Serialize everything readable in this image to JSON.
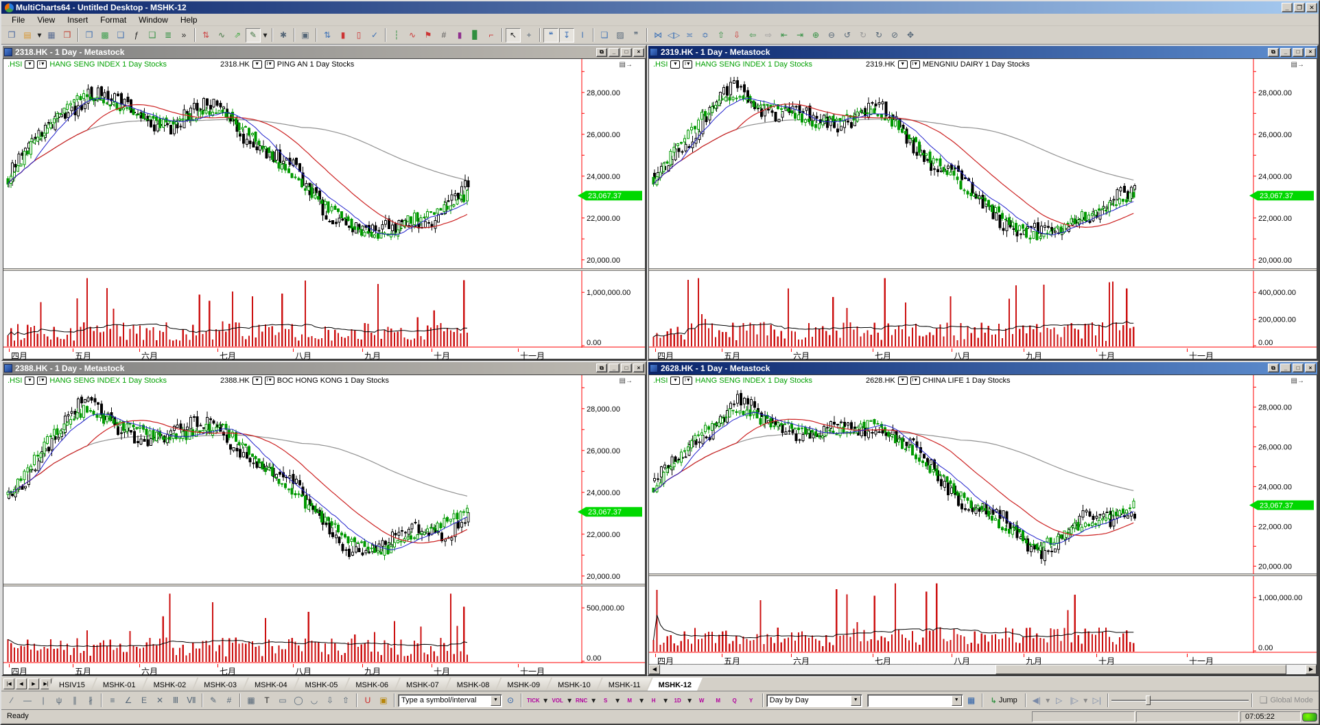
{
  "window": {
    "title": "MultiCharts64 - Untitled Desktop - MSHK-12"
  },
  "menu": [
    "File",
    "View",
    "Insert",
    "Format",
    "Window",
    "Help"
  ],
  "window_buttons": {
    "minimize": "_",
    "restore": "❐",
    "close": "✕"
  },
  "toolbar_main": [
    {
      "n": "new-window-icon",
      "g": "❐",
      "c": "#44639c"
    },
    {
      "n": "open-desktop-icon",
      "g": "▤",
      "c": "#d9952c"
    },
    {
      "n": "open-dropdown-icon",
      "g": "▾",
      "c": "#222",
      "narrow": true
    },
    {
      "n": "save-desktop-icon",
      "g": "▦",
      "c": "#5a6d91"
    },
    {
      "n": "close-window-icon",
      "g": "❒",
      "c": "#c0392b"
    },
    {
      "sep": true
    },
    {
      "n": "insert-window-icon",
      "g": "❐",
      "c": "#3f6fb0"
    },
    {
      "n": "format-window-icon",
      "g": "▩",
      "c": "#3f9f4f"
    },
    {
      "n": "insert-symbol-icon",
      "g": "❑",
      "c": "#3f6fb0"
    },
    {
      "n": "insert-function-icon",
      "g": "ƒ",
      "c": "#222"
    },
    {
      "n": "insert-study-icon",
      "g": "❑",
      "c": "#2f8f3f"
    },
    {
      "n": "study-list-icon",
      "g": "≣",
      "c": "#2f8f3f"
    },
    {
      "n": "toolbar-overflow-icon",
      "g": "»",
      "c": "#222"
    },
    {
      "sep": true
    },
    {
      "n": "insert-instrument-icon",
      "g": "⇅",
      "c": "#cc4444"
    },
    {
      "n": "insert-curve-icon",
      "g": "∿",
      "c": "#447744"
    },
    {
      "n": "insert-arrows-icon",
      "g": "⇗",
      "c": "#44aa44"
    },
    {
      "n": "drawing-mode-icon",
      "g": "✎",
      "c": "#447744",
      "pressed": true
    },
    {
      "n": "drawing-dropdown-icon",
      "g": "▾",
      "c": "#222",
      "narrow": true
    },
    {
      "sep": true
    },
    {
      "n": "study-settings-icon",
      "g": "✱",
      "c": "#556677"
    },
    {
      "sep": true
    },
    {
      "n": "window-properties-icon",
      "g": "▣",
      "c": "#556677"
    },
    {
      "sep": true
    },
    {
      "n": "format-bars-icon",
      "g": "⇅",
      "c": "#3a6fb5"
    },
    {
      "n": "up-candle-icon",
      "g": "▮",
      "c": "#cc3333"
    },
    {
      "n": "hollow-candle-icon",
      "g": "▯",
      "c": "#cc3333"
    },
    {
      "n": "apply-check-icon",
      "g": "✓",
      "c": "#3a6fb5"
    },
    {
      "sep": true
    },
    {
      "n": "line-chart-icon",
      "g": "┆",
      "c": "#2f8f3f"
    },
    {
      "n": "zigzag-chart-icon",
      "g": "∿",
      "c": "#cc3333"
    },
    {
      "n": "flag-chart-icon",
      "g": "⚑",
      "c": "#cc3333"
    },
    {
      "n": "point-figure-icon",
      "g": "#",
      "c": "#555555"
    },
    {
      "n": "candle-volume-icon",
      "g": "▮",
      "c": "#8f2f8f"
    },
    {
      "n": "equivolume-icon",
      "g": "▊",
      "c": "#2f8f3f"
    },
    {
      "n": "kagi-icon",
      "g": "⌐",
      "c": "#cc3333"
    },
    {
      "sep": true
    },
    {
      "n": "pointer-icon",
      "g": "↖",
      "c": "#222",
      "pressed": true
    },
    {
      "n": "crosshair-icon",
      "g": "+",
      "c": "#556677"
    },
    {
      "sep": true
    },
    {
      "n": "callout-icon",
      "g": "❝",
      "c": "#3a6fb5",
      "pressed": true
    },
    {
      "n": "vertical-cursor-icon",
      "g": "↧",
      "c": "#3a6fb5",
      "pressed": true
    },
    {
      "n": "text-cursor-icon",
      "g": "I",
      "c": "#3a6fb5"
    },
    {
      "sep": true
    },
    {
      "n": "data-window-icon",
      "g": "❏",
      "c": "#3a6fb5"
    },
    {
      "n": "snapshot-icon",
      "g": "▨",
      "c": "#556677"
    },
    {
      "n": "feedback-icon",
      "g": "❞",
      "c": "#556677"
    },
    {
      "sep": true
    },
    {
      "n": "compress-horizontal-icon",
      "g": "⋈",
      "c": "#3a6fb5"
    },
    {
      "n": "expand-horizontal-icon",
      "g": "◁▷",
      "c": "#3a6fb5"
    },
    {
      "n": "compress-vertical-icon",
      "g": "≍",
      "c": "#3a6fb5"
    },
    {
      "n": "expand-vertical-icon",
      "g": "≎",
      "c": "#3a6fb5"
    },
    {
      "n": "scale-up-icon",
      "g": "⇧",
      "c": "#2f8f3f"
    },
    {
      "n": "scale-down-icon",
      "g": "⇩",
      "c": "#cc3333"
    },
    {
      "n": "shift-left-icon",
      "g": "⇦",
      "c": "#2f8f3f"
    },
    {
      "n": "shift-right-icon",
      "g": "⇨",
      "c": "#999999"
    },
    {
      "n": "go-begin-icon",
      "g": "⇤",
      "c": "#2f8f3f"
    },
    {
      "n": "go-end-icon",
      "g": "⇥",
      "c": "#2f8f3f"
    },
    {
      "n": "zoom-in-icon",
      "g": "⊕",
      "c": "#2f8f3f"
    },
    {
      "n": "zoom-out-icon",
      "g": "⊖",
      "c": "#556677"
    },
    {
      "n": "undo-icon",
      "g": "↺",
      "c": "#556677"
    },
    {
      "n": "undo-all-icon",
      "g": "↻",
      "c": "#999999"
    },
    {
      "n": "redo-icon",
      "g": "↻",
      "c": "#556677"
    },
    {
      "n": "zoom-reset-icon",
      "g": "⊘",
      "c": "#556677"
    },
    {
      "n": "pan-hand-icon",
      "g": "✥",
      "c": "#556677"
    }
  ],
  "panels": [
    {
      "window_title": "2318.HK - 1 Day - Metastock",
      "active": false,
      "index_legend": {
        "symbol": ".HSI",
        "name": "HANG SENG INDEX",
        "interval": "1 Day",
        "category": "Stocks"
      },
      "stock_legend": {
        "symbol": "2318.HK",
        "name": "PING AN",
        "interval": "1 Day",
        "category": "Stocks"
      },
      "price_tag": "23,067.37",
      "volume_ticks": [
        0,
        1000000
      ],
      "seed": 101,
      "wave": {
        "k": 5.2,
        "ph": 0.4,
        "amp": 430
      },
      "scrollbar": false
    },
    {
      "window_title": "2319.HK - 1 Day - Metastock",
      "active": true,
      "index_legend": {
        "symbol": ".HSI",
        "name": "HANG SENG INDEX",
        "interval": "1 Day",
        "category": "Stocks"
      },
      "stock_legend": {
        "symbol": "2319.HK",
        "name": "MENGNIU DAIRY",
        "interval": "1 Day",
        "category": "Stocks"
      },
      "price_tag": "23,067.37",
      "volume_ticks": [
        0,
        200000,
        400000
      ],
      "seed": 202,
      "wave": {
        "k": 6.1,
        "ph": 2.1,
        "amp": 380
      },
      "scrollbar": false
    },
    {
      "window_title": "2388.HK - 1 Day - Metastock",
      "active": false,
      "index_legend": {
        "symbol": ".HSI",
        "name": "HANG SENG INDEX",
        "interval": "1 Day",
        "category": "Stocks"
      },
      "stock_legend": {
        "symbol": "2388.HK",
        "name": "BOC HONG KONG",
        "interval": "1 Day",
        "category": "Stocks"
      },
      "price_tag": "23,067.37",
      "volume_ticks": [
        0,
        500000
      ],
      "seed": 303,
      "wave": {
        "k": 4.4,
        "ph": 3.3,
        "amp": 540
      },
      "scrollbar": false
    },
    {
      "window_title": "2628.HK - 1 Day - Metastock",
      "active": true,
      "index_legend": {
        "symbol": ".HSI",
        "name": "HANG SENG INDEX",
        "interval": "1 Day",
        "category": "Stocks"
      },
      "stock_legend": {
        "symbol": "2628.HK",
        "name": "CHINA LIFE",
        "interval": "1 Day",
        "category": "Stocks"
      },
      "price_tag": "23,067.37",
      "volume_ticks": [
        0,
        1000000
      ],
      "seed": 404,
      "wave": {
        "k": 5.7,
        "ph": 1.0,
        "amp": 460
      },
      "scrollbar": true,
      "scroll_thumb": [
        0.52,
        0.45
      ]
    }
  ],
  "chart_data": {
    "type": "candlestick+volume",
    "description": "Four daily charts: Hang Seng Index (green candles, right scale) overlaid with HK stocks (black bars), 3 moving averages (fast blue, slow red, long gray), red volume bars with black volume MA",
    "months": [
      "四月",
      "五月",
      "六月",
      "七月",
      "八月",
      "九月",
      "十月",
      "十一月"
    ],
    "month_fractions": [
      0.01,
      0.12,
      0.235,
      0.37,
      0.5,
      0.62,
      0.74,
      0.89
    ],
    "ylim": [
      19600,
      29600
    ],
    "yticks": [
      20000,
      22000,
      24000,
      26000,
      28000
    ],
    "minor_step": 1000,
    "last_value": 23067.37,
    "bars": 140,
    "data_extent": 0.8,
    "hsi_trend": [
      [
        0,
        23800
      ],
      [
        0.04,
        25200
      ],
      [
        0.1,
        26800
      ],
      [
        0.17,
        28000
      ],
      [
        0.22,
        27400
      ],
      [
        0.28,
        27000
      ],
      [
        0.34,
        26500
      ],
      [
        0.4,
        26800
      ],
      [
        0.46,
        27200
      ],
      [
        0.5,
        26500
      ],
      [
        0.56,
        25200
      ],
      [
        0.62,
        24000
      ],
      [
        0.68,
        22800
      ],
      [
        0.74,
        21800
      ],
      [
        0.8,
        21000
      ],
      [
        0.84,
        21400
      ],
      [
        0.88,
        22000
      ],
      [
        0.93,
        22300
      ],
      [
        1.0,
        23100
      ]
    ],
    "colors": {
      "index": "#009900",
      "stock": "#000000",
      "ma_fast": "#2020cc",
      "ma_slow": "#cc2020",
      "ma_long": "#909090",
      "volume": "#cc1111",
      "volume_ma": "#000000",
      "axis": "#ff0000",
      "tag": "#00d800"
    }
  },
  "tabs": {
    "items": [
      "HSIV15",
      "MSHK-01",
      "MSHK-02",
      "MSHK-03",
      "MSHK-04",
      "MSHK-05",
      "MSHK-06",
      "MSHK-07",
      "MSHK-08",
      "MSHK-09",
      "MSHK-10",
      "MSHK-11",
      "MSHK-12"
    ],
    "active": "MSHK-12",
    "nav": [
      {
        "n": "first-tab-button",
        "g": "|◀"
      },
      {
        "n": "prev-tab-button",
        "g": "◀"
      },
      {
        "n": "next-tab-button",
        "g": "▶"
      },
      {
        "n": "last-tab-button",
        "g": "▶|"
      }
    ]
  },
  "bottom": {
    "draw_tools": [
      {
        "n": "trendline-icon",
        "g": "∕",
        "c": "#556677"
      },
      {
        "n": "horizontal-segment-icon",
        "g": "—",
        "c": "#556677"
      },
      {
        "n": "vertical-segment-icon",
        "g": "|",
        "c": "#556677"
      },
      {
        "n": "pitchfork-icon",
        "g": "ψ",
        "c": "#556677"
      },
      {
        "n": "parallel-channel-icon",
        "g": "∥",
        "c": "#556677"
      },
      {
        "n": "regression-channel-icon",
        "g": "∦",
        "c": "#556677"
      },
      {
        "sep": true
      },
      {
        "n": "fib-retracement-icon",
        "g": "≡",
        "c": "#556677"
      },
      {
        "n": "fib-fan-icon",
        "g": "∠",
        "c": "#556677"
      },
      {
        "n": "fib-extension-icon",
        "g": "E",
        "c": "#556677"
      },
      {
        "n": "fib-timezone-icon",
        "g": "✕",
        "c": "#556677"
      },
      {
        "n": "cycle-lines-icon",
        "g": "Ⅲ",
        "c": "#556677"
      },
      {
        "n": "time-cycles-icon",
        "g": "Ⅶ",
        "c": "#556677"
      },
      {
        "sep": true
      },
      {
        "n": "freehand-draw-icon",
        "g": "✎",
        "c": "#556677"
      },
      {
        "n": "grid-tool-icon",
        "g": "#",
        "c": "#556677"
      },
      {
        "sep": true
      },
      {
        "n": "price-label-icon",
        "g": "▦",
        "c": "#556677"
      },
      {
        "n": "text-tool-icon",
        "g": "T",
        "c": "#222222"
      },
      {
        "n": "rectangle-tool-icon",
        "g": "▭",
        "c": "#556677"
      },
      {
        "n": "ellipse-tool-icon",
        "g": "◯",
        "c": "#556677"
      },
      {
        "n": "arc-tool-icon",
        "g": "◡",
        "c": "#556677"
      },
      {
        "n": "arrow-down-tool-icon",
        "g": "⇩",
        "c": "#556677"
      },
      {
        "n": "arrow-up-tool-icon",
        "g": "⇧",
        "c": "#556677"
      },
      {
        "sep": true
      },
      {
        "n": "magnet-icon",
        "g": "U",
        "c": "#cc2222"
      },
      {
        "n": "stay-drawing-mode-icon",
        "g": "▣",
        "c": "#b8860b"
      }
    ],
    "symbol_combo": "Type a symbol/interval",
    "clock_icon": "⊙",
    "resolutions": [
      {
        "n": "resolution-tick-button",
        "label": "TICK",
        "dd": true
      },
      {
        "n": "resolution-volume-button",
        "label": "VOL",
        "dd": true
      },
      {
        "n": "resolution-range-button",
        "label": "RNC",
        "dd": true
      },
      {
        "n": "resolution-seconds-button",
        "label": "S",
        "dd": true
      },
      {
        "n": "resolution-minutes-button",
        "label": "M",
        "dd": true
      },
      {
        "n": "resolution-hours-button",
        "label": "H",
        "dd": true
      },
      {
        "n": "resolution-days-button",
        "label": "1D",
        "dd": true
      },
      {
        "n": "resolution-weeks-button",
        "label": "W",
        "dd": false
      },
      {
        "n": "resolution-months-button",
        "label": "M",
        "dd": false
      },
      {
        "n": "resolution-quarters-button",
        "label": "Q",
        "dd": false
      },
      {
        "n": "resolution-years-button",
        "label": "Y",
        "dd": false
      }
    ],
    "mode_combo": "Day by Day",
    "interval_combo": "",
    "calendar_button": "▦",
    "jump_label": "Jump",
    "jump_icon": "↳",
    "playback": [
      {
        "n": "step-back-button",
        "g": "◀|"
      },
      {
        "n": "step-back-dropdown",
        "g": "▾"
      },
      {
        "n": "play-button",
        "g": "▷"
      },
      {
        "n": "play-to-end-button",
        "g": "|▷"
      },
      {
        "n": "play-to-end-dropdown",
        "g": "▾"
      },
      {
        "n": "go-last-button",
        "g": "▷|"
      }
    ],
    "global_mode": "Global Mode",
    "global_mode_icon": "❏"
  },
  "status": {
    "ready": "Ready",
    "cell1": "",
    "cell2": "",
    "time": "07:05:22"
  }
}
